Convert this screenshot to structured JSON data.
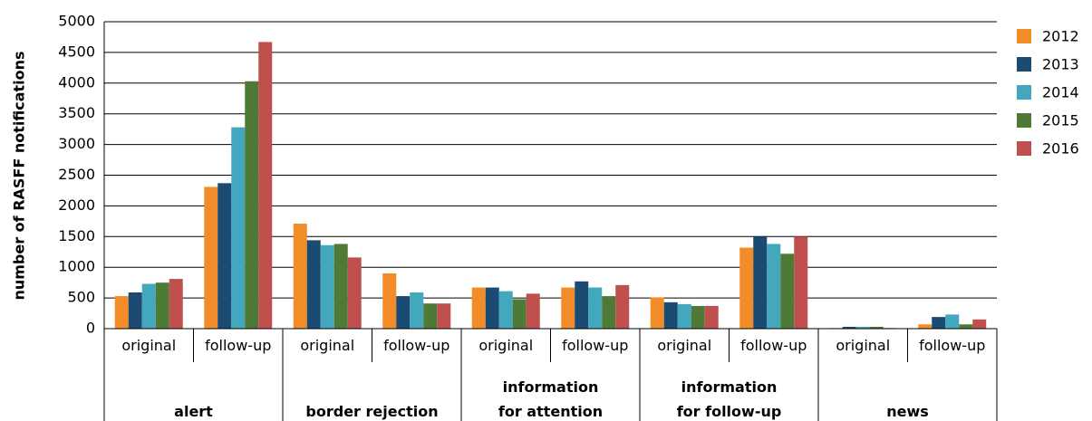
{
  "chart_data": {
    "type": "bar",
    "y_label": "number of RASFF notifications",
    "groups": [
      {
        "label": "alert",
        "categories": [
          "original",
          "follow-up"
        ]
      },
      {
        "label": "border rejection",
        "categories": [
          "original",
          "follow-up"
        ]
      },
      {
        "label": "information\nfor attention",
        "categories": [
          "original",
          "follow-up"
        ]
      },
      {
        "label": "information\nfor follow-up",
        "categories": [
          "original",
          "follow-up"
        ]
      },
      {
        "label": "news",
        "categories": [
          "original",
          "follow-up"
        ]
      }
    ],
    "series": [
      {
        "name": "2012",
        "color": "#f28c28",
        "values": [
          530,
          2310,
          1710,
          900,
          670,
          670,
          510,
          1320,
          10,
          70
        ]
      },
      {
        "name": "2013",
        "color": "#1b4a73",
        "values": [
          590,
          2370,
          1440,
          530,
          670,
          770,
          430,
          1500,
          30,
          190
        ]
      },
      {
        "name": "2014",
        "color": "#43a7be",
        "values": [
          730,
          3280,
          1360,
          590,
          610,
          670,
          400,
          1380,
          30,
          230
        ]
      },
      {
        "name": "2015",
        "color": "#4f7a36",
        "values": [
          750,
          4030,
          1380,
          410,
          480,
          530,
          370,
          1220,
          30,
          70
        ]
      },
      {
        "name": "2016",
        "color": "#c0504d",
        "values": [
          810,
          4670,
          1160,
          410,
          570,
          710,
          370,
          1500,
          10,
          150
        ]
      }
    ],
    "ylim": [
      0,
      5000
    ],
    "yticks": [
      0,
      500,
      1000,
      1500,
      2000,
      2500,
      3000,
      3500,
      4000,
      4500,
      5000
    ],
    "grid": true,
    "legend": "right"
  }
}
